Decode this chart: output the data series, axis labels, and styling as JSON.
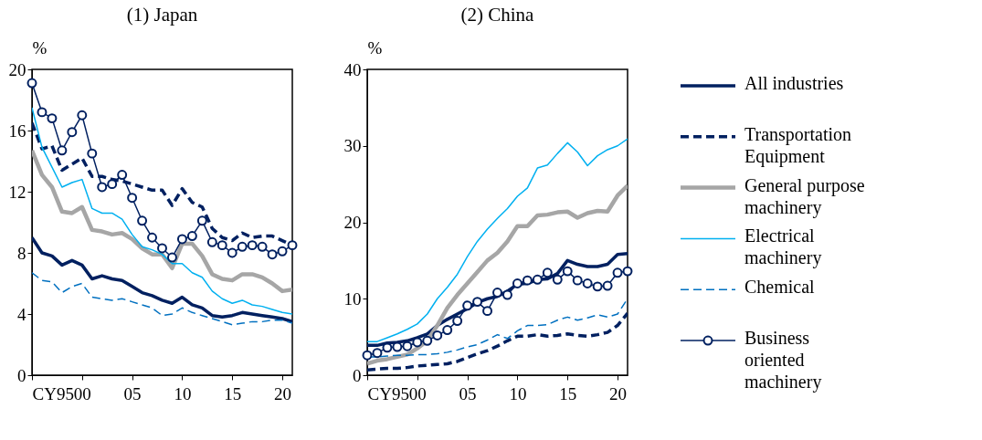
{
  "chart_data": [
    {
      "type": "line",
      "title": "(1) Japan",
      "ylabel": "%",
      "x": [
        1995,
        1996,
        1997,
        1998,
        1999,
        2000,
        2001,
        2002,
        2003,
        2004,
        2005,
        2006,
        2007,
        2008,
        2009,
        2010,
        2011,
        2012,
        2013,
        2014,
        2015,
        2016,
        2017,
        2018,
        2019,
        2020,
        2021
      ],
      "xlim": [
        1995,
        2021
      ],
      "xticks": [
        {
          "value": 1995,
          "label": "CY95"
        },
        {
          "value": 2000,
          "label": "00"
        },
        {
          "value": 2005,
          "label": "05"
        },
        {
          "value": 2010,
          "label": "10"
        },
        {
          "value": 2015,
          "label": "15"
        },
        {
          "value": 2020,
          "label": "20"
        }
      ],
      "ylim": [
        0,
        20
      ],
      "yticks": [
        0,
        4,
        8,
        12,
        16,
        20
      ],
      "grid": false,
      "legend": false,
      "series": [
        {
          "color": "#002060",
          "line_style": "solid",
          "marker": "none",
          "values": [
            9.0,
            8.0,
            7.8,
            7.2,
            7.5,
            7.2,
            6.3,
            6.5,
            6.3,
            6.2,
            5.8,
            5.4,
            5.2,
            4.9,
            4.7,
            5.1,
            4.6,
            4.4,
            3.9,
            3.8,
            3.9,
            4.1,
            4.0,
            3.9,
            3.8,
            3.7,
            3.5
          ]
        },
        {
          "color": "#002060",
          "line_style": "dashed",
          "marker": "none",
          "values": [
            16.5,
            14.8,
            15.0,
            13.4,
            13.8,
            14.2,
            13.0,
            13.0,
            12.8,
            12.7,
            12.5,
            12.3,
            12.1,
            12.1,
            11.1,
            12.2,
            11.3,
            11.0,
            9.6,
            9.0,
            8.8,
            9.3,
            9.0,
            9.1,
            9.1,
            8.8,
            8.5
          ]
        },
        {
          "color": "#a6a6a6",
          "line_style": "solid",
          "marker": "none",
          "values": [
            14.7,
            13.1,
            12.3,
            10.7,
            10.6,
            11.0,
            9.5,
            9.4,
            9.2,
            9.3,
            8.9,
            8.3,
            7.9,
            7.9,
            7.0,
            8.6,
            8.6,
            7.8,
            6.6,
            6.3,
            6.2,
            6.6,
            6.6,
            6.4,
            6.0,
            5.5,
            5.6
          ]
        },
        {
          "color": "#00b0f0",
          "line_style": "solid",
          "marker": "none",
          "values": [
            17.5,
            14.9,
            13.6,
            12.3,
            12.6,
            12.8,
            10.9,
            10.6,
            10.6,
            10.2,
            9.2,
            8.4,
            8.2,
            7.9,
            7.3,
            7.3,
            6.7,
            6.4,
            5.5,
            5.0,
            4.7,
            4.9,
            4.6,
            4.5,
            4.3,
            4.1,
            4.0
          ]
        },
        {
          "color": "#0070c0",
          "line_style": "dashed",
          "marker": "none",
          "values": [
            6.7,
            6.2,
            6.1,
            5.4,
            5.8,
            6.0,
            5.1,
            5.0,
            4.9,
            5.0,
            4.8,
            4.6,
            4.4,
            3.9,
            4.0,
            4.4,
            4.1,
            3.9,
            3.7,
            3.5,
            3.3,
            3.4,
            3.5,
            3.5,
            3.6,
            3.6,
            3.4
          ]
        },
        {
          "color": "#002060",
          "line_style": "solid",
          "marker": "circle",
          "values": [
            19.1,
            17.2,
            16.8,
            14.7,
            15.9,
            17.0,
            14.5,
            12.3,
            12.5,
            13.1,
            11.6,
            10.1,
            9.0,
            8.3,
            7.7,
            8.9,
            9.1,
            10.1,
            8.7,
            8.5,
            8.0,
            8.4,
            8.5,
            8.4,
            7.9,
            8.1,
            8.5
          ]
        }
      ]
    },
    {
      "type": "line",
      "title": "(2) China",
      "ylabel": "%",
      "x": [
        1995,
        1996,
        1997,
        1998,
        1999,
        2000,
        2001,
        2002,
        2003,
        2004,
        2005,
        2006,
        2007,
        2008,
        2009,
        2010,
        2011,
        2012,
        2013,
        2014,
        2015,
        2016,
        2017,
        2018,
        2019,
        2020,
        2021
      ],
      "xlim": [
        1995,
        2021
      ],
      "xticks": [
        {
          "value": 1995,
          "label": "CY95"
        },
        {
          "value": 2000,
          "label": "00"
        },
        {
          "value": 2005,
          "label": "05"
        },
        {
          "value": 2010,
          "label": "10"
        },
        {
          "value": 2015,
          "label": "15"
        },
        {
          "value": 2020,
          "label": "20"
        }
      ],
      "ylim": [
        0,
        40
      ],
      "yticks": [
        0,
        10,
        20,
        30,
        40
      ],
      "grid": false,
      "legend": "right",
      "series": [
        {
          "name": "All industries",
          "color": "#002060",
          "line_style": "solid",
          "marker": "none",
          "values": [
            3.9,
            3.9,
            4.2,
            4.3,
            4.5,
            4.9,
            5.4,
            6.5,
            7.3,
            8.0,
            8.7,
            9.5,
            10.0,
            10.3,
            11.0,
            11.9,
            12.0,
            12.5,
            12.6,
            13.3,
            15.0,
            14.5,
            14.2,
            14.2,
            14.5,
            15.8,
            15.9
          ]
        },
        {
          "name": "Transportation Equipment",
          "color": "#002060",
          "line_style": "dashed",
          "marker": "none",
          "values": [
            0.7,
            0.8,
            0.9,
            0.9,
            1.0,
            1.2,
            1.3,
            1.4,
            1.5,
            1.8,
            2.3,
            2.8,
            3.2,
            3.8,
            4.5,
            5.1,
            5.1,
            5.3,
            5.1,
            5.2,
            5.4,
            5.2,
            5.1,
            5.3,
            5.6,
            6.5,
            8.1
          ]
        },
        {
          "name": "General purpose machinery",
          "color": "#a6a6a6",
          "line_style": "solid",
          "marker": "none",
          "values": [
            1.5,
            1.9,
            2.1,
            2.4,
            2.7,
            3.5,
            4.5,
            6.5,
            8.8,
            10.5,
            12.0,
            13.5,
            15.0,
            16.0,
            17.5,
            19.5,
            19.5,
            20.9,
            21.0,
            21.3,
            21.4,
            20.6,
            21.2,
            21.5,
            21.4,
            23.5,
            24.8
          ]
        },
        {
          "name": "Electrical machinery",
          "color": "#00b0f0",
          "line_style": "solid",
          "marker": "none",
          "values": [
            4.4,
            4.4,
            4.9,
            5.4,
            6.0,
            6.7,
            8.0,
            10.0,
            11.5,
            13.2,
            15.5,
            17.5,
            19.1,
            20.5,
            21.8,
            23.4,
            24.5,
            27.1,
            27.5,
            29.0,
            30.4,
            29.2,
            27.4,
            28.7,
            29.5,
            30.0,
            30.9
          ]
        },
        {
          "name": "Chemical",
          "color": "#0070c0",
          "line_style": "dashed",
          "marker": "none",
          "values": [
            2.4,
            2.4,
            2.5,
            2.6,
            2.6,
            2.7,
            2.7,
            2.8,
            3.0,
            3.3,
            3.7,
            4.0,
            4.6,
            5.3,
            4.8,
            5.8,
            6.5,
            6.5,
            6.6,
            7.2,
            7.6,
            7.2,
            7.5,
            7.9,
            7.6,
            8.0,
            10.0
          ]
        },
        {
          "name": "Business oriented machinery",
          "color": "#002060",
          "line_style": "solid",
          "marker": "circle",
          "values": [
            2.6,
            2.9,
            3.6,
            3.7,
            3.8,
            4.3,
            4.5,
            5.2,
            5.9,
            7.1,
            9.1,
            9.6,
            8.4,
            10.8,
            10.5,
            12.0,
            12.4,
            12.5,
            13.4,
            12.5,
            13.6,
            12.4,
            12.0,
            11.6,
            11.7,
            13.4,
            13.6
          ]
        }
      ]
    }
  ]
}
